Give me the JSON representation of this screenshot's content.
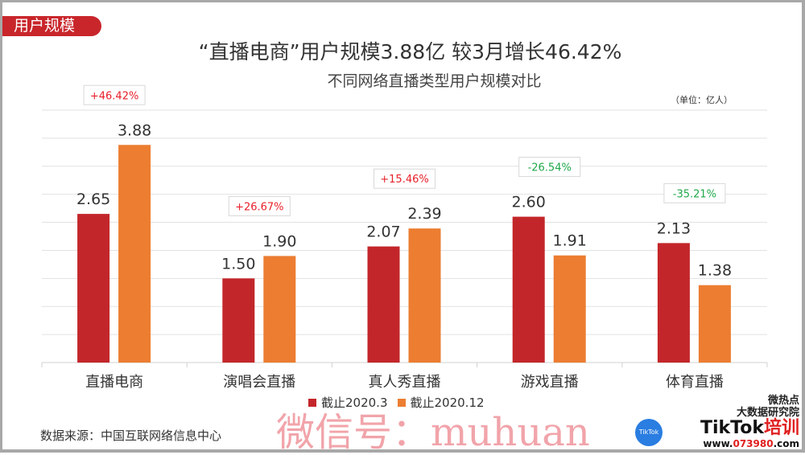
{
  "header": {
    "tag": "用户规模",
    "title": "“直播电商”用户规模3.88亿 较3月增长46.42%",
    "subtitle": "不同网络直播类型用户规模对比",
    "unit": "（单位：亿人）"
  },
  "chart_data": {
    "type": "bar",
    "categories": [
      "直播电商",
      "演唱会直播",
      "真人秀直播",
      "游戏直播",
      "体育直播"
    ],
    "series": [
      {
        "name": "截止2020.3",
        "color": "#c3262a",
        "values": [
          2.65,
          1.5,
          2.07,
          2.6,
          2.13
        ]
      },
      {
        "name": "截止2020.12",
        "color": "#ec7d31",
        "values": [
          3.88,
          1.9,
          2.39,
          1.91,
          1.38
        ]
      }
    ],
    "changes": [
      "+46.42%",
      "+26.67%",
      "+15.46%",
      "-26.54%",
      "-35.21%"
    ],
    "change_colors": {
      "up": "#e8202a",
      "down": "#1fa84a"
    },
    "ylim": [
      0,
      4.5
    ],
    "grid_step": 0.5,
    "legend": "bottom"
  },
  "footer": {
    "source": "数据来源：中国互联网络信息中心",
    "watermark": "微信号：muhuan",
    "logo_line1": "微热点",
    "logo_line2": "大数据研究院",
    "logo_brand": "TikTok",
    "logo_brand_suffix": "培训",
    "logo_url_prefix": "www.",
    "logo_url_num": "073980",
    "logo_url_suffix": ".com",
    "badge": "TikTok"
  }
}
